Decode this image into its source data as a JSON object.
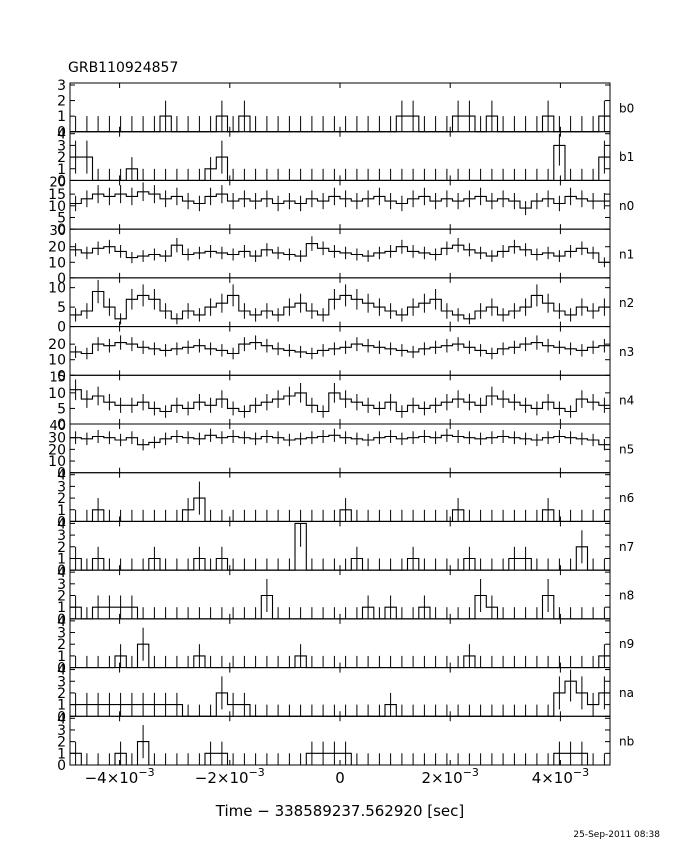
{
  "header": {
    "title": "GRB110924857"
  },
  "footer": {
    "xlabel": "Time − 338589237.562920 [sec]",
    "timestamp": "25-Sep-2011 08:38"
  },
  "chart_data": {
    "type": "line",
    "subtype": "step histogram (stacked detector panels)",
    "title": "GRB110924857",
    "xlabel": "Time − 338589237.562920 [sec]",
    "xlim": [
      -0.0049,
      0.0049
    ],
    "x_ticks": [
      -0.004,
      -0.002,
      0,
      0.002,
      0.004
    ],
    "x_tick_labels": [
      {
        "base": "−4×10",
        "exp": "−3",
        "plain": ""
      },
      {
        "base": "−2×10",
        "exp": "−3",
        "plain": ""
      },
      {
        "base": "",
        "exp": "",
        "plain": "0"
      },
      {
        "base": "2×10",
        "exp": "−3",
        "plain": ""
      },
      {
        "base": "4×10",
        "exp": "−3",
        "plain": ""
      }
    ],
    "n_bins": 48,
    "series": [
      {
        "name": "b0",
        "ylim": [
          0,
          3
        ],
        "yticks": [
          0,
          1,
          2,
          3
        ],
        "values": [
          0,
          0,
          0,
          0,
          0,
          0,
          0,
          0,
          1,
          0,
          0,
          0,
          0,
          1,
          0,
          1,
          0,
          0,
          0,
          0,
          0,
          0,
          0,
          0,
          0,
          0,
          0,
          0,
          0,
          1,
          1,
          0,
          0,
          0,
          1,
          1,
          0,
          1,
          0,
          0,
          0,
          0,
          1,
          0,
          0,
          0,
          0,
          1
        ]
      },
      {
        "name": "b1",
        "ylim": [
          0,
          4
        ],
        "yticks": [
          0,
          1,
          2,
          3,
          4
        ],
        "values": [
          2,
          2,
          0,
          0,
          0,
          1,
          0,
          0,
          0,
          0,
          0,
          0,
          1,
          2,
          0,
          0,
          0,
          0,
          0,
          0,
          0,
          0,
          0,
          0,
          0,
          0,
          0,
          0,
          0,
          0,
          0,
          0,
          0,
          0,
          0,
          0,
          0,
          0,
          0,
          0,
          0,
          0,
          0,
          3,
          0,
          0,
          0,
          2
        ]
      },
      {
        "name": "n0",
        "ylim": [
          0,
          20
        ],
        "yticks": [
          0,
          5,
          10,
          15
        ],
        "top_label": "20",
        "values": [
          11,
          13,
          15,
          14,
          15,
          14,
          16,
          15,
          13,
          14,
          12,
          11,
          14,
          15,
          12,
          13,
          12,
          13,
          11,
          12,
          11,
          13,
          12,
          14,
          13,
          12,
          13,
          14,
          12,
          11,
          13,
          14,
          12,
          13,
          12,
          13,
          14,
          12,
          13,
          12,
          9,
          12,
          13,
          11,
          14,
          13,
          12,
          12
        ]
      },
      {
        "name": "n1",
        "ylim": [
          0,
          30
        ],
        "yticks": [
          0,
          10,
          20
        ],
        "top_label": "30",
        "values": [
          18,
          16,
          19,
          20,
          17,
          13,
          14,
          15,
          14,
          21,
          15,
          16,
          17,
          16,
          15,
          17,
          14,
          18,
          16,
          15,
          14,
          22,
          19,
          17,
          16,
          15,
          14,
          16,
          17,
          20,
          17,
          16,
          15,
          19,
          21,
          18,
          16,
          14,
          17,
          20,
          18,
          15,
          16,
          14,
          17,
          19,
          16,
          10
        ]
      },
      {
        "name": "n2",
        "ylim": [
          0,
          12
        ],
        "yticks": [
          0,
          5,
          10
        ],
        "values": [
          3,
          4,
          9,
          5,
          2,
          7,
          8,
          7,
          4,
          2,
          4,
          3,
          5,
          6,
          8,
          4,
          3,
          4,
          3,
          5,
          6,
          4,
          3,
          7,
          8,
          7,
          6,
          5,
          4,
          3,
          5,
          6,
          7,
          4,
          3,
          2,
          4,
          5,
          3,
          4,
          5,
          8,
          6,
          4,
          3,
          5,
          4,
          5
        ]
      },
      {
        "name": "n3",
        "ylim": [
          0,
          30
        ],
        "yticks": [
          0,
          10,
          20
        ],
        "values": [
          15,
          14,
          20,
          19,
          21,
          20,
          18,
          17,
          16,
          17,
          18,
          19,
          17,
          16,
          14,
          20,
          21,
          19,
          17,
          16,
          15,
          14,
          16,
          17,
          18,
          20,
          19,
          18,
          17,
          16,
          15,
          17,
          18,
          19,
          20,
          18,
          16,
          14,
          17,
          18,
          20,
          21,
          19,
          18,
          17,
          16,
          18,
          19
        ]
      },
      {
        "name": "n4",
        "ylim": [
          0,
          15
        ],
        "yticks": [
          0,
          5,
          10
        ],
        "top_label": "15",
        "values": [
          11,
          8,
          9,
          7,
          6,
          6,
          7,
          5,
          4,
          6,
          5,
          7,
          6,
          8,
          5,
          4,
          6,
          7,
          8,
          9,
          10,
          6,
          4,
          10,
          8,
          7,
          6,
          5,
          7,
          4,
          6,
          5,
          6,
          7,
          8,
          7,
          6,
          9,
          8,
          7,
          6,
          5,
          7,
          5,
          4,
          8,
          7,
          6
        ]
      },
      {
        "name": "n5",
        "ylim": [
          0,
          40
        ],
        "yticks": [
          0,
          10,
          20,
          30
        ],
        "top_label": "40",
        "values": [
          30,
          29,
          31,
          30,
          28,
          30,
          24,
          26,
          29,
          31,
          30,
          29,
          32,
          30,
          31,
          30,
          29,
          31,
          30,
          28,
          29,
          30,
          31,
          32,
          30,
          29,
          28,
          30,
          31,
          29,
          30,
          31,
          30,
          32,
          31,
          30,
          29,
          30,
          31,
          30,
          29,
          28,
          30,
          31,
          30,
          29,
          28,
          24
        ]
      },
      {
        "name": "n6",
        "ylim": [
          0,
          4
        ],
        "yticks": [
          0,
          1,
          2,
          3,
          4
        ],
        "values": [
          0,
          0,
          1,
          0,
          0,
          0,
          0,
          0,
          0,
          0,
          1,
          2,
          0,
          0,
          0,
          0,
          0,
          0,
          0,
          0,
          0,
          0,
          0,
          0,
          1,
          0,
          0,
          0,
          0,
          0,
          0,
          0,
          0,
          0,
          1,
          0,
          0,
          0,
          0,
          0,
          0,
          0,
          1,
          0,
          0,
          0,
          0,
          0
        ]
      },
      {
        "name": "n7",
        "ylim": [
          0,
          4
        ],
        "yticks": [
          0,
          1,
          2,
          3,
          4
        ],
        "values": [
          1,
          0,
          1,
          0,
          0,
          0,
          0,
          1,
          0,
          0,
          0,
          1,
          0,
          1,
          0,
          0,
          0,
          0,
          0,
          0,
          4,
          0,
          0,
          0,
          0,
          1,
          0,
          0,
          0,
          0,
          1,
          0,
          0,
          0,
          0,
          1,
          0,
          0,
          0,
          1,
          1,
          0,
          0,
          0,
          0,
          2,
          0,
          0
        ]
      },
      {
        "name": "n8",
        "ylim": [
          0,
          4
        ],
        "yticks": [
          0,
          1,
          2,
          3,
          4
        ],
        "values": [
          1,
          0,
          1,
          1,
          1,
          1,
          0,
          0,
          0,
          0,
          0,
          0,
          0,
          0,
          0,
          0,
          0,
          2,
          0,
          0,
          0,
          0,
          0,
          0,
          0,
          0,
          1,
          0,
          1,
          0,
          0,
          1,
          0,
          0,
          0,
          0,
          2,
          1,
          0,
          0,
          0,
          0,
          2,
          0,
          0,
          0,
          0,
          0
        ]
      },
      {
        "name": "n9",
        "ylim": [
          0,
          4
        ],
        "yticks": [
          0,
          1,
          2,
          3,
          4
        ],
        "values": [
          0,
          0,
          0,
          0,
          1,
          0,
          2,
          0,
          0,
          0,
          0,
          1,
          0,
          0,
          0,
          0,
          0,
          0,
          0,
          0,
          1,
          0,
          0,
          0,
          0,
          0,
          0,
          0,
          0,
          0,
          0,
          0,
          0,
          0,
          0,
          1,
          0,
          0,
          0,
          0,
          0,
          0,
          0,
          0,
          0,
          0,
          0,
          1
        ]
      },
      {
        "name": "na",
        "ylim": [
          0,
          4
        ],
        "yticks": [
          0,
          1,
          2,
          3,
          4
        ],
        "values": [
          1,
          1,
          1,
          1,
          1,
          1,
          1,
          1,
          1,
          1,
          0,
          0,
          0,
          2,
          1,
          1,
          0,
          0,
          0,
          0,
          0,
          0,
          0,
          0,
          0,
          0,
          0,
          0,
          1,
          0,
          0,
          0,
          0,
          0,
          0,
          0,
          0,
          0,
          0,
          0,
          0,
          0,
          0,
          2,
          3,
          2,
          1,
          2
        ]
      },
      {
        "name": "nb",
        "ylim": [
          0,
          4
        ],
        "yticks": [
          0,
          1,
          2,
          3,
          4
        ],
        "values": [
          1,
          0,
          0,
          0,
          1,
          0,
          2,
          0,
          0,
          0,
          0,
          0,
          1,
          1,
          0,
          0,
          0,
          0,
          0,
          0,
          0,
          1,
          1,
          1,
          1,
          0,
          0,
          0,
          0,
          0,
          0,
          0,
          0,
          0,
          0,
          0,
          0,
          0,
          0,
          0,
          0,
          0,
          0,
          1,
          1,
          1,
          0,
          0
        ]
      }
    ]
  }
}
